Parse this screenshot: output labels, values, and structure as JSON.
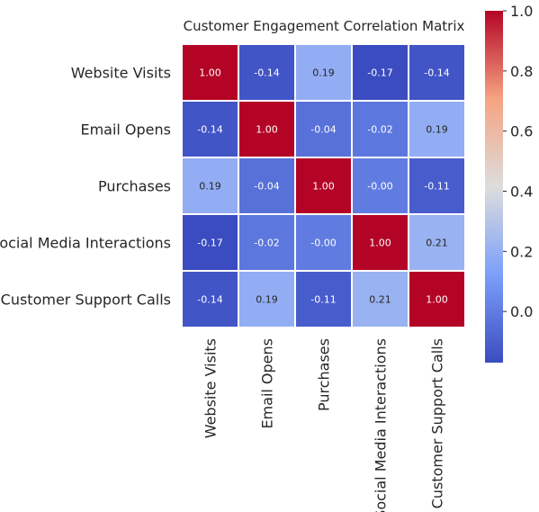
{
  "chart_data": {
    "type": "heatmap",
    "title": "Customer Engagement Correlation Matrix",
    "row_labels": [
      "Website Visits",
      "Email Opens",
      "Purchases",
      "Social Media Interactions",
      "Customer Support Calls"
    ],
    "col_labels": [
      "Website Visits",
      "Email Opens",
      "Purchases",
      "Social Media Interactions",
      "Customer Support Calls"
    ],
    "values": [
      [
        1.0,
        -0.14,
        0.19,
        -0.17,
        -0.14
      ],
      [
        -0.14,
        1.0,
        -0.04,
        -0.02,
        0.19
      ],
      [
        0.19,
        -0.04,
        1.0,
        -0.0,
        -0.11
      ],
      [
        -0.17,
        -0.02,
        -0.0,
        1.0,
        0.21
      ],
      [
        -0.14,
        0.19,
        -0.11,
        0.21,
        1.0
      ]
    ],
    "value_labels": [
      [
        "1.00",
        "-0.14",
        "0.19",
        "-0.17",
        "-0.14"
      ],
      [
        "-0.14",
        "1.00",
        "-0.04",
        "-0.02",
        "0.19"
      ],
      [
        "0.19",
        "-0.04",
        "1.00",
        "-0.00",
        "-0.11"
      ],
      [
        "-0.17",
        "-0.02",
        "-0.00",
        "1.00",
        "0.21"
      ],
      [
        "-0.14",
        "0.19",
        "-0.11",
        "0.21",
        "1.00"
      ]
    ],
    "colormap": "coolwarm",
    "vmin": -0.17,
    "vmax": 1.0,
    "colorbar": {
      "ticks": [
        0.0,
        0.2,
        0.4,
        0.6,
        0.8,
        1.0
      ],
      "tick_labels": [
        "0.0",
        "0.2",
        "0.4",
        "0.6",
        "0.8",
        "1.0"
      ],
      "placement": "right"
    },
    "grid_color": "#ffffff"
  }
}
